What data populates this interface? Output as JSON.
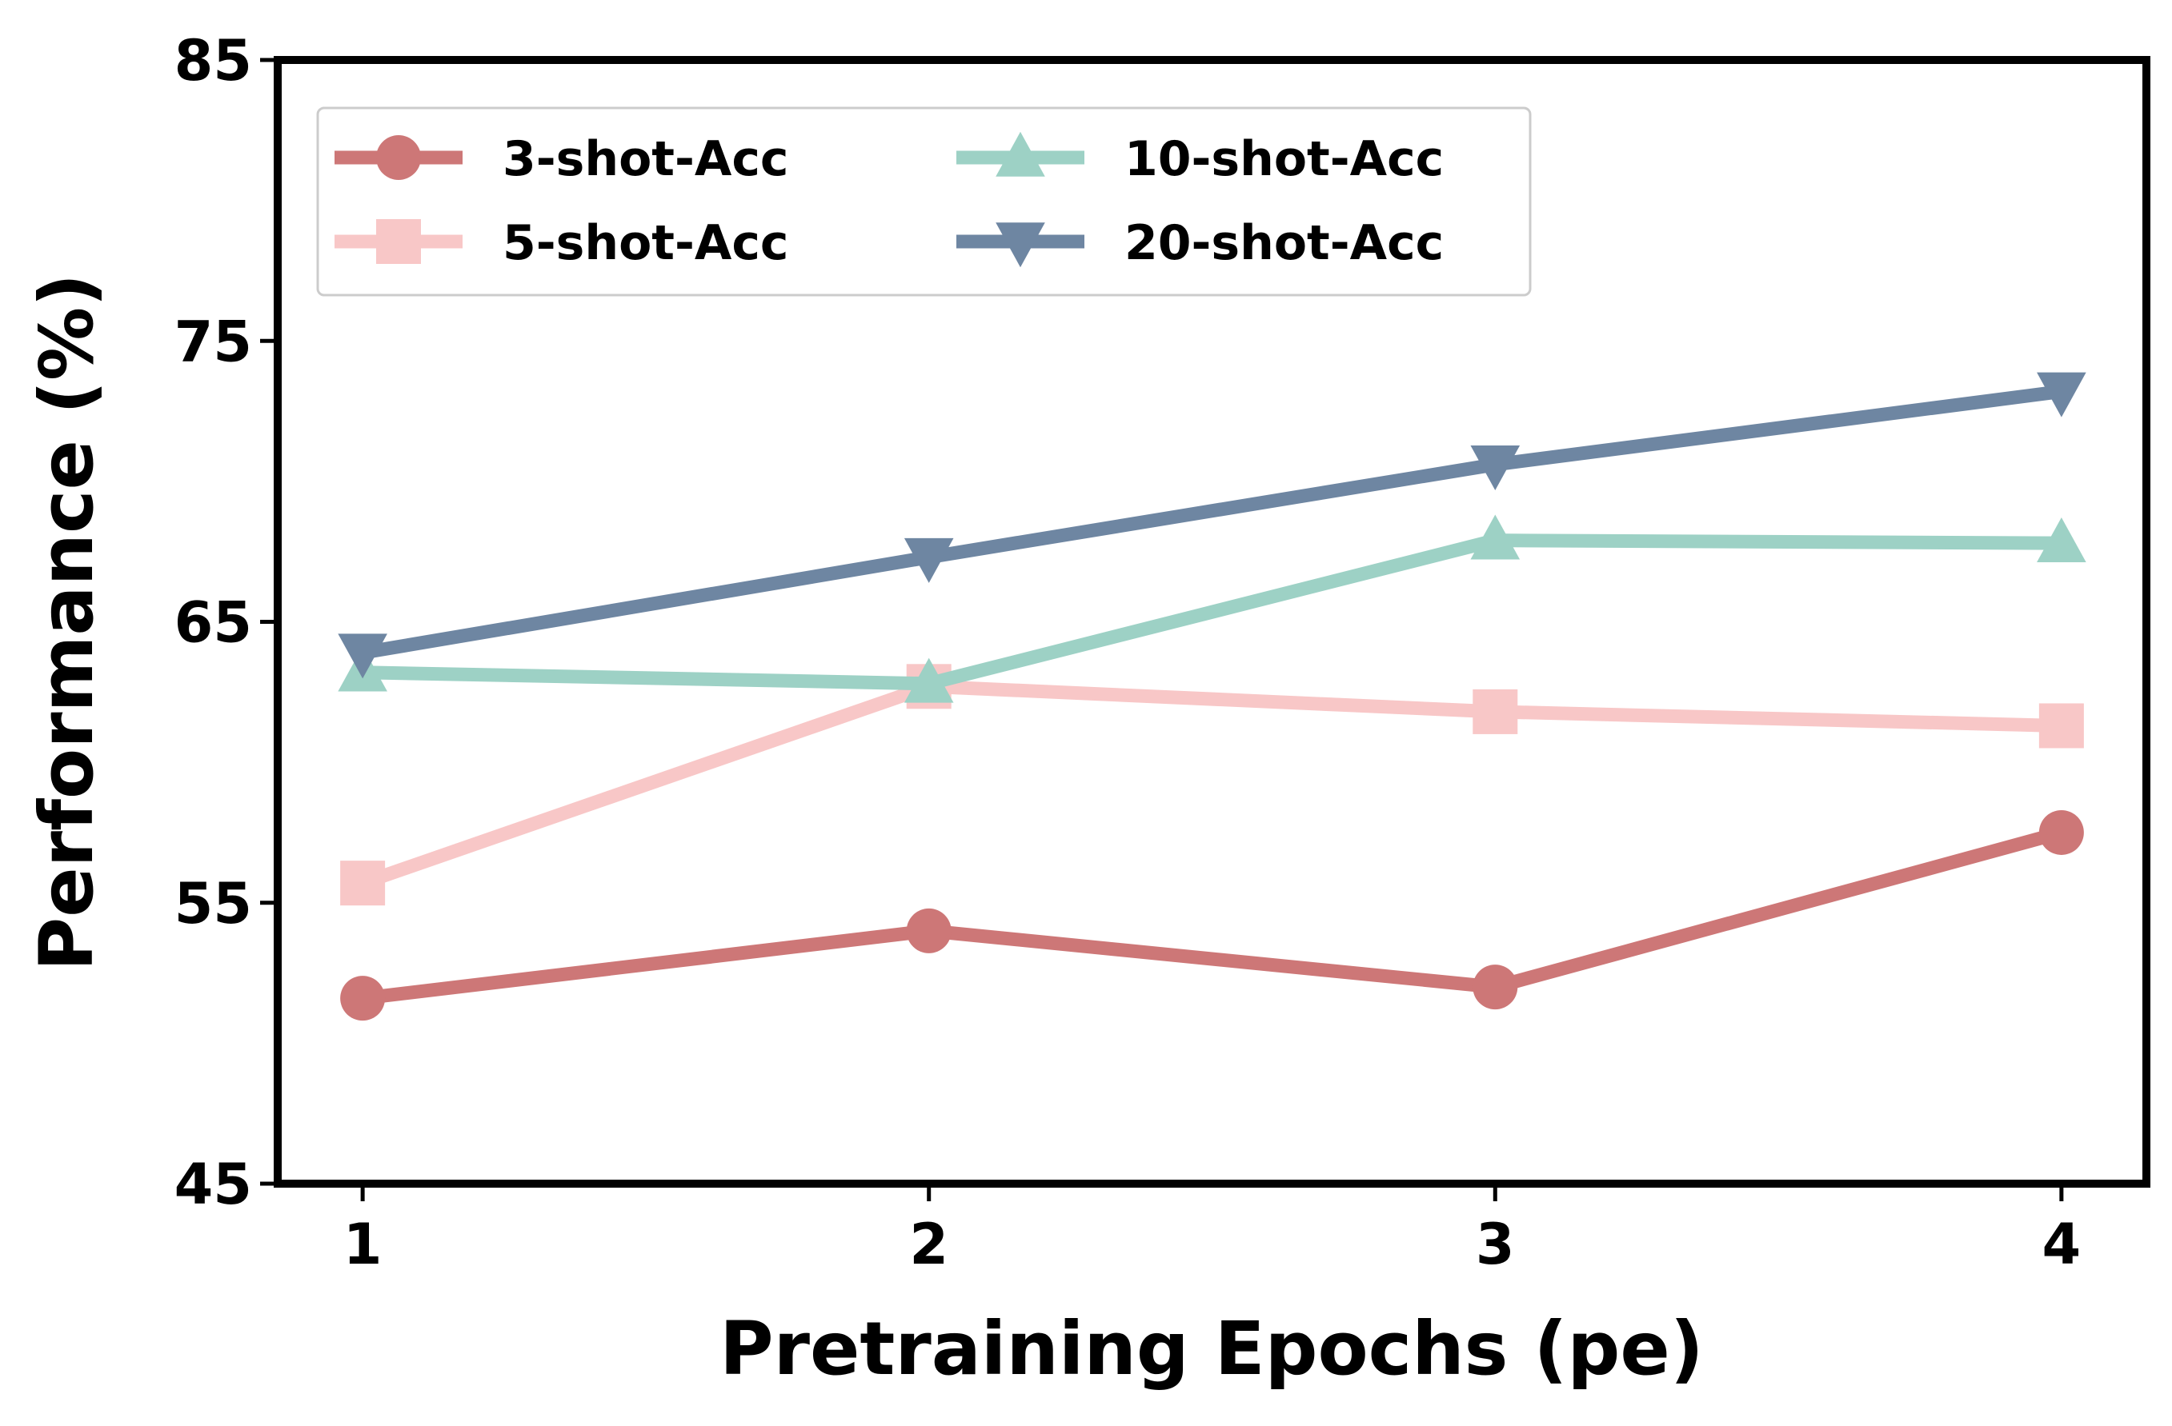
{
  "chart_data": {
    "type": "line",
    "title": "",
    "xlabel": "Pretraining Epochs (pe)",
    "ylabel": "Performance (%)",
    "x": [
      1,
      2,
      3,
      4
    ],
    "xticks": [
      "1",
      "2",
      "3",
      "4"
    ],
    "yticks": [
      "45",
      "55",
      "65",
      "75",
      "85"
    ],
    "ylim": [
      45,
      85
    ],
    "xlim": [
      0.85,
      4.15
    ],
    "grid": false,
    "legend_position": "top-left",
    "series": [
      {
        "name": "3-shot-Acc",
        "values": [
          51.6,
          54.0,
          52.0,
          57.5
        ],
        "color": "#cd7777",
        "marker": "circle"
      },
      {
        "name": "5-shot-Acc",
        "values": [
          55.7,
          62.7,
          61.8,
          61.3
        ],
        "color": "#f8c7c7",
        "marker": "square"
      },
      {
        "name": "10-shot-Acc",
        "values": [
          63.2,
          62.8,
          67.9,
          67.8
        ],
        "color": "#9dd1c5",
        "marker": "triangle-up"
      },
      {
        "name": "20-shot-Acc",
        "values": [
          63.9,
          67.3,
          70.6,
          73.2
        ],
        "color": "#6e86a2",
        "marker": "triangle-down"
      }
    ]
  }
}
